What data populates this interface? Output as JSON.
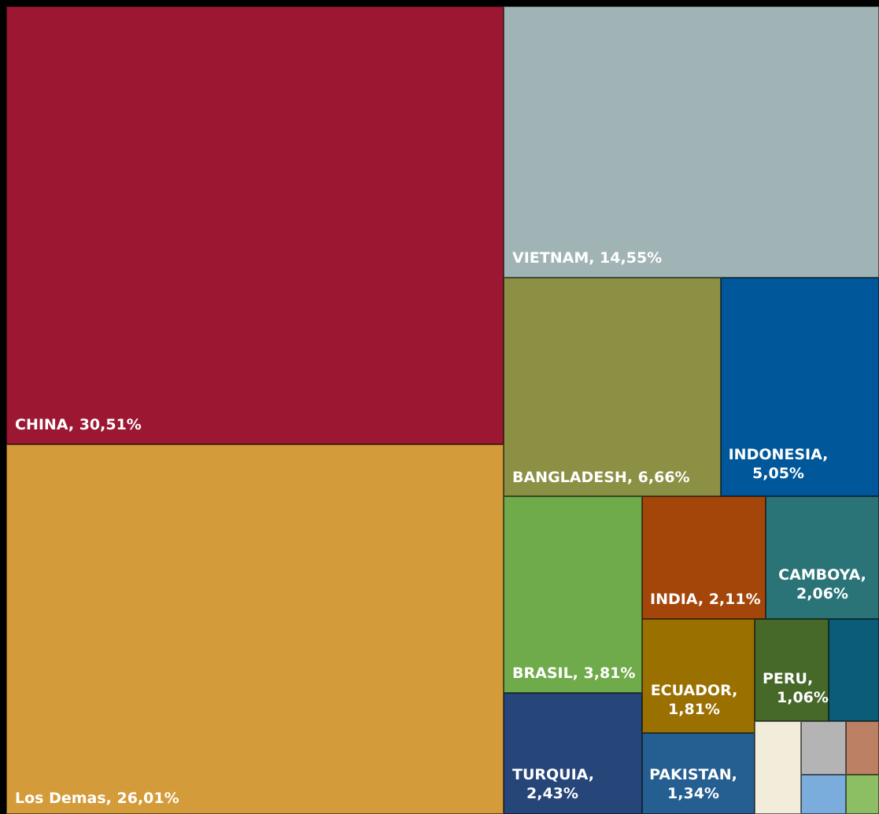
{
  "chart_data": {
    "type": "treemap",
    "title": "",
    "items": [
      {
        "name": "CHINA",
        "value": 30.51,
        "label": "CHINA, 30,51%",
        "color": "#9c1832"
      },
      {
        "name": "Los Demas",
        "value": 26.01,
        "label": "Los Demas, 26,01%",
        "color": "#d49b3a"
      },
      {
        "name": "VIETNAM",
        "value": 14.55,
        "label": "VIETNAM, 14,55%",
        "color": "#a0b4b6"
      },
      {
        "name": "BANGLADESH",
        "value": 6.66,
        "label": "BANGLADESH, 6,66%",
        "color": "#8c9045"
      },
      {
        "name": "INDONESIA",
        "value": 5.05,
        "label": "INDONESIA, 5,05%",
        "color": "#00579a"
      },
      {
        "name": "BRASIL",
        "value": 3.81,
        "label": "BRASIL, 3,81%",
        "color": "#6fab4a"
      },
      {
        "name": "TURQUIA",
        "value": 2.43,
        "label": "TURQUIA, 2,43%",
        "color": "#264578"
      },
      {
        "name": "INDIA",
        "value": 2.11,
        "label": "INDIA, 2,11%",
        "color": "#a4460a"
      },
      {
        "name": "CAMBOYA",
        "value": 2.06,
        "label": "CAMBOYA, 2,06%",
        "color": "#2a7478"
      },
      {
        "name": "ECUADOR",
        "value": 1.81,
        "label": "ECUADOR, 1,81%",
        "color": "#9a7001"
      },
      {
        "name": "PAKISTAN",
        "value": 1.34,
        "label": "PAKISTAN, 1,34%",
        "color": "#255e90"
      },
      {
        "name": "PERU",
        "value": 1.06,
        "label": "PERU, 1,06%",
        "color": "#46692a"
      },
      {
        "name": "",
        "value": 0.9,
        "label": "",
        "color": "#0a5c78"
      },
      {
        "name": "",
        "value": 0.48,
        "label": "",
        "color": "#f2ecda"
      },
      {
        "name": "",
        "value": 0.23,
        "label": "",
        "color": "#b4b4b4"
      },
      {
        "name": "",
        "value": 0.17,
        "label": "",
        "color": "#bc8064"
      },
      {
        "name": "",
        "value": 0.17,
        "label": "",
        "color": "#7aacdc"
      },
      {
        "name": "",
        "value": 0.15,
        "label": "",
        "color": "#8cbe64"
      }
    ]
  }
}
